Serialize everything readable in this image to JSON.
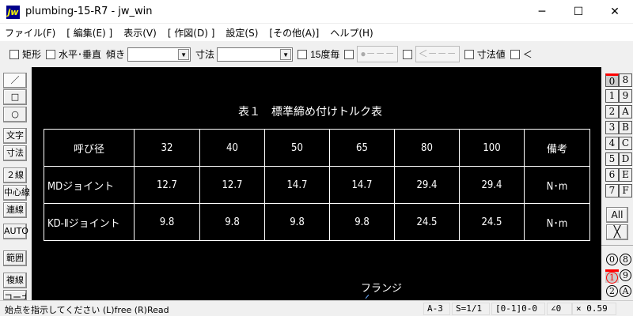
{
  "window": {
    "title": "plumbing-15-R7 - jw_win",
    "logo": "jw",
    "minimize": "─",
    "maximize": "☐",
    "close": "✕"
  },
  "menu": [
    "ファイル(F)",
    "[ 編集(E) ]",
    "表示(V)",
    "[ 作図(D) ]",
    "設定(S)",
    "[その他(A)]",
    "ヘルプ(H)"
  ],
  "toolbar": {
    "rect": "矩形",
    "hv": "水平･垂直",
    "tilt_label": "傾き",
    "tilt_value": "",
    "dim_label": "寸法",
    "dim_value": "",
    "deg15": "15度毎",
    "btn1": "●－－－",
    "btn2": "＜－－－",
    "dimval": "寸法値",
    "lt": "＜"
  },
  "left_tools": [
    "／",
    "□",
    "○",
    "文字",
    "寸法",
    "２線",
    "中心線",
    "連線",
    "AUTO",
    "範囲",
    "複線",
    "コーナー"
  ],
  "layers": {
    "left": [
      "0",
      "1",
      "2",
      "3",
      "4",
      "5",
      "6",
      "7"
    ],
    "right": [
      "8",
      "9",
      "A",
      "B",
      "C",
      "D",
      "E",
      "F"
    ],
    "all": "All",
    "x": "╳",
    "active": "0"
  },
  "layer_groups": {
    "left": [
      "0",
      "1",
      "2"
    ],
    "right": [
      "8",
      "9",
      "A"
    ],
    "active": "1"
  },
  "drawing": {
    "title": "表１　標準締め付けトルク表",
    "table": {
      "header": [
        "呼び径",
        "32",
        "40",
        "50",
        "65",
        "80",
        "100",
        "備考"
      ],
      "rows": [
        [
          "MDジョイント",
          "12.7",
          "12.7",
          "14.7",
          "14.7",
          "29.4",
          "29.4",
          "N･m"
        ],
        [
          "KD-Ⅱジョイント",
          "9.8",
          "9.8",
          "9.8",
          "9.8",
          "24.5",
          "24.5",
          "N･m"
        ]
      ]
    },
    "label": "フランジ"
  },
  "status": {
    "message": "始点を指示してください (L)free (R)Read",
    "paper": "A-3",
    "scale": "S=1/1",
    "layer": "[0-1]0-0",
    "angle": "∠0",
    "zoom": "× 0.59"
  },
  "colors": {
    "canvas": "#000000",
    "active_layer": "#ff0000",
    "group2": "#cc00cc"
  }
}
